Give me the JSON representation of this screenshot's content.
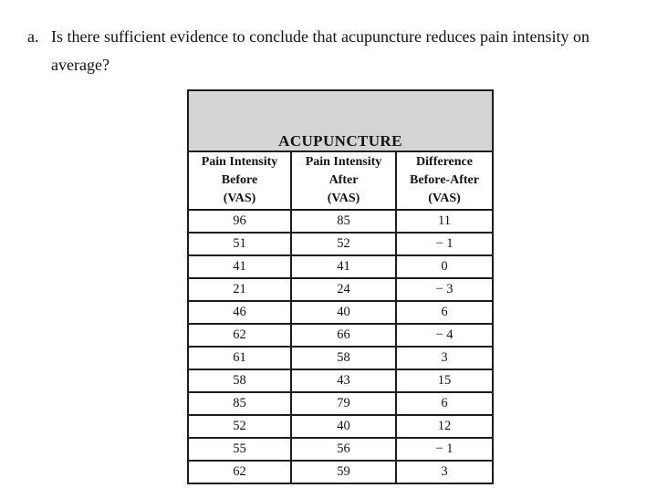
{
  "question": {
    "marker": "a.",
    "text": "Is there sufficient evidence to conclude that acupuncture reduces pain intensity on average?"
  },
  "table": {
    "title": "ACUPUNCTURE",
    "columns": [
      {
        "lines": [
          "Pain Intensity",
          "Before",
          "(VAS)"
        ]
      },
      {
        "lines": [
          "Pain Intensity",
          "After",
          "(VAS)"
        ]
      },
      {
        "lines": [
          "Difference",
          "Before-After",
          "(VAS)"
        ]
      }
    ],
    "rows": [
      [
        "96",
        "85",
        "11"
      ],
      [
        "51",
        "52",
        "− 1"
      ],
      [
        "41",
        "41",
        "0"
      ],
      [
        "21",
        "24",
        "− 3"
      ],
      [
        "46",
        "40",
        "6"
      ],
      [
        "62",
        "66",
        "− 4"
      ],
      [
        "61",
        "58",
        "3"
      ],
      [
        "58",
        "43",
        "15"
      ],
      [
        "85",
        "79",
        "6"
      ],
      [
        "52",
        "40",
        "12"
      ],
      [
        "55",
        "56",
        "− 1"
      ],
      [
        "62",
        "59",
        "3"
      ]
    ]
  },
  "colors": {
    "title_band": "#d4d4d4",
    "border": "#1d1d1d",
    "text": "#131313",
    "background": "#ffffff"
  }
}
